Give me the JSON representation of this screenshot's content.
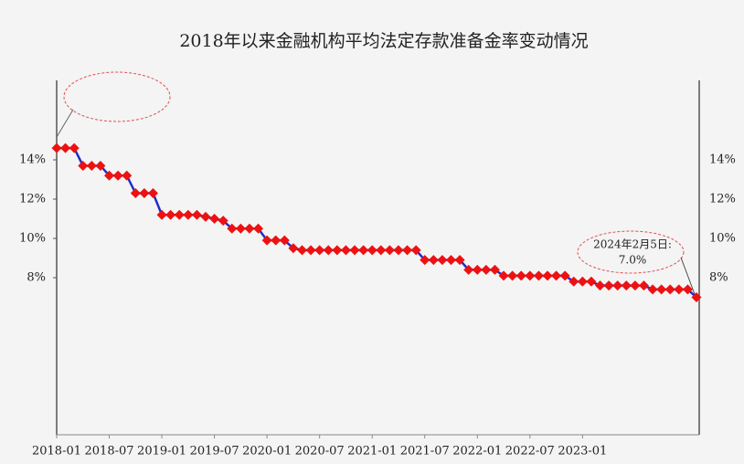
{
  "chart_data": {
    "type": "line",
    "title": "2018年以来金融机构平均法定存款准备金率变动情况",
    "categories": [
      "2018-01",
      null,
      null,
      null,
      null,
      null,
      "2018-07",
      null,
      null,
      null,
      null,
      null,
      "2019-01",
      null,
      null,
      null,
      null,
      null,
      "2019-07",
      null,
      null,
      null,
      null,
      null,
      "2020-01",
      null,
      null,
      null,
      null,
      null,
      "2020-07",
      null,
      null,
      null,
      null,
      null,
      "2021-01",
      null,
      null,
      null,
      null,
      null,
      "2021-07",
      null,
      null,
      null,
      null,
      null,
      "2022-01",
      null,
      null,
      null,
      null,
      null,
      "2022-07",
      null,
      null,
      null,
      null,
      null,
      "2023-01",
      null,
      null,
      null,
      null,
      null,
      null,
      null,
      null,
      null,
      null,
      null,
      null,
      null
    ],
    "series": [
      {
        "name": "平均法定存款准备金率",
        "color": "#1f2fc8",
        "marker_color": "#ee1111",
        "values": [
          14.6,
          14.6,
          14.6,
          13.7,
          13.7,
          13.7,
          13.2,
          13.2,
          13.2,
          12.3,
          12.3,
          12.3,
          11.2,
          11.2,
          11.2,
          11.2,
          11.2,
          11.1,
          11.0,
          10.9,
          10.5,
          10.5,
          10.5,
          10.5,
          9.9,
          9.9,
          9.9,
          9.5,
          9.4,
          9.4,
          9.4,
          9.4,
          9.4,
          9.4,
          9.4,
          9.4,
          9.4,
          9.4,
          9.4,
          9.4,
          9.4,
          9.4,
          8.9,
          8.9,
          8.9,
          8.9,
          8.9,
          8.4,
          8.4,
          8.4,
          8.4,
          8.1,
          8.1,
          8.1,
          8.1,
          8.1,
          8.1,
          8.1,
          8.1,
          7.8,
          7.8,
          7.8,
          7.6,
          7.6,
          7.6,
          7.6,
          7.6,
          7.6,
          7.4,
          7.4,
          7.4,
          7.4,
          7.4,
          7.0
        ]
      }
    ],
    "ylim": [
      0,
      18
    ],
    "yticks": [
      {
        "value": 8,
        "label": "8%"
      },
      {
        "value": 10,
        "label": "10%"
      },
      {
        "value": 12,
        "label": "12%"
      },
      {
        "value": 14,
        "label": "14%"
      }
    ],
    "annotation": [
      "2024年2月5日:",
      "7.0%"
    ],
    "grid": false
  }
}
